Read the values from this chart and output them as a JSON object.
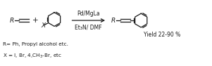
{
  "background_color": "#ffffff",
  "figsize": [
    3.01,
    0.94
  ],
  "dpi": 100,
  "reagent_text": "Pd/MgLa",
  "solvent_text": "Et₃N/ DMF",
  "yield_text": "Yield 22-90 %",
  "r_label1": "R= Ph, Propyl alcohol etc.",
  "x_label1": "X = I, Br, 4,CH₃-Br, etc",
  "plus_sign": "+",
  "r_text": "R",
  "x_text": "X",
  "font_size_main": 6.5,
  "font_size_small": 5.5,
  "font_size_label": 5.2,
  "text_color": "#1a1a1a",
  "xlim": [
    0,
    10
  ],
  "ylim": [
    0,
    3.1
  ]
}
